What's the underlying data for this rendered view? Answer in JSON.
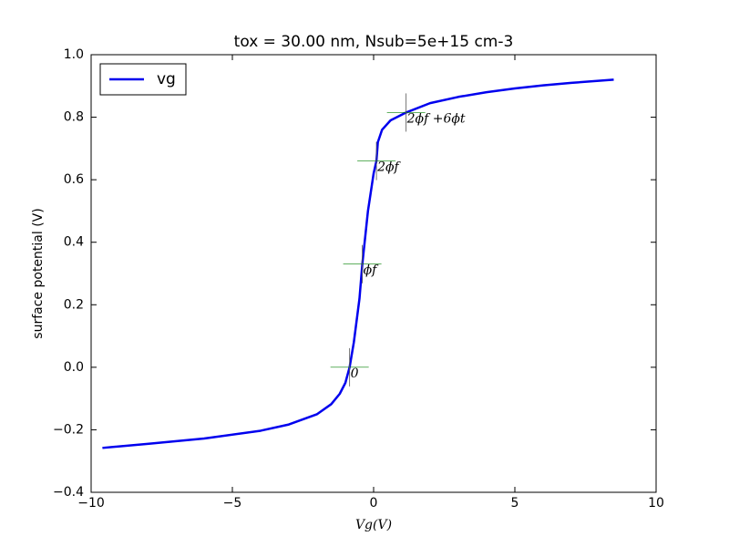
{
  "chart_data": {
    "type": "line",
    "title": "tox = 30.00 nm, Nsub=5e+15 cm-3",
    "x_label": "Vg(V)",
    "y_label": "surface potential (V)",
    "x": [
      -9.6,
      -8,
      -6,
      -4,
      -3,
      -2,
      -1.5,
      -1.2,
      -1.0,
      -0.85,
      -0.7,
      -0.5,
      -0.4,
      -0.2,
      0,
      0.1,
      0.15,
      0.3,
      0.6,
      1.15,
      2,
      3,
      4,
      5,
      6,
      7,
      8.5
    ],
    "series": [
      {
        "name": "vg",
        "color": "#0000ee",
        "values": [
          -0.258,
          -0.245,
          -0.228,
          -0.203,
          -0.183,
          -0.15,
          -0.118,
          -0.085,
          -0.05,
          0.0,
          0.08,
          0.22,
          0.33,
          0.5,
          0.62,
          0.66,
          0.72,
          0.76,
          0.79,
          0.815,
          0.845,
          0.865,
          0.88,
          0.892,
          0.902,
          0.91,
          0.92
        ]
      }
    ],
    "xlim": [
      -10,
      10
    ],
    "ylim": [
      -0.4,
      1.0
    ],
    "xticks": [
      {
        "value": -10,
        "label": "−10"
      },
      {
        "value": -5,
        "label": "−5"
      },
      0,
      5,
      10
    ],
    "yticks": [
      {
        "value": -0.4,
        "label": "−0.4"
      },
      {
        "value": -0.2,
        "label": "−0.2"
      },
      {
        "value": 0,
        "label": "0.0"
      },
      0.2,
      0.4,
      0.6,
      0.8,
      {
        "value": 1,
        "label": "1.0"
      }
    ],
    "legend": "upper left",
    "annotations": [
      {
        "text": "0",
        "x": -0.85,
        "y": 0.0
      },
      {
        "text": "ϕf",
        "x": -0.4,
        "y": 0.33
      },
      {
        "text": "2ϕf",
        "x": 0.1,
        "y": 0.66
      },
      {
        "text": "2ϕf +6ϕt",
        "x": 1.15,
        "y": 0.815
      }
    ]
  }
}
